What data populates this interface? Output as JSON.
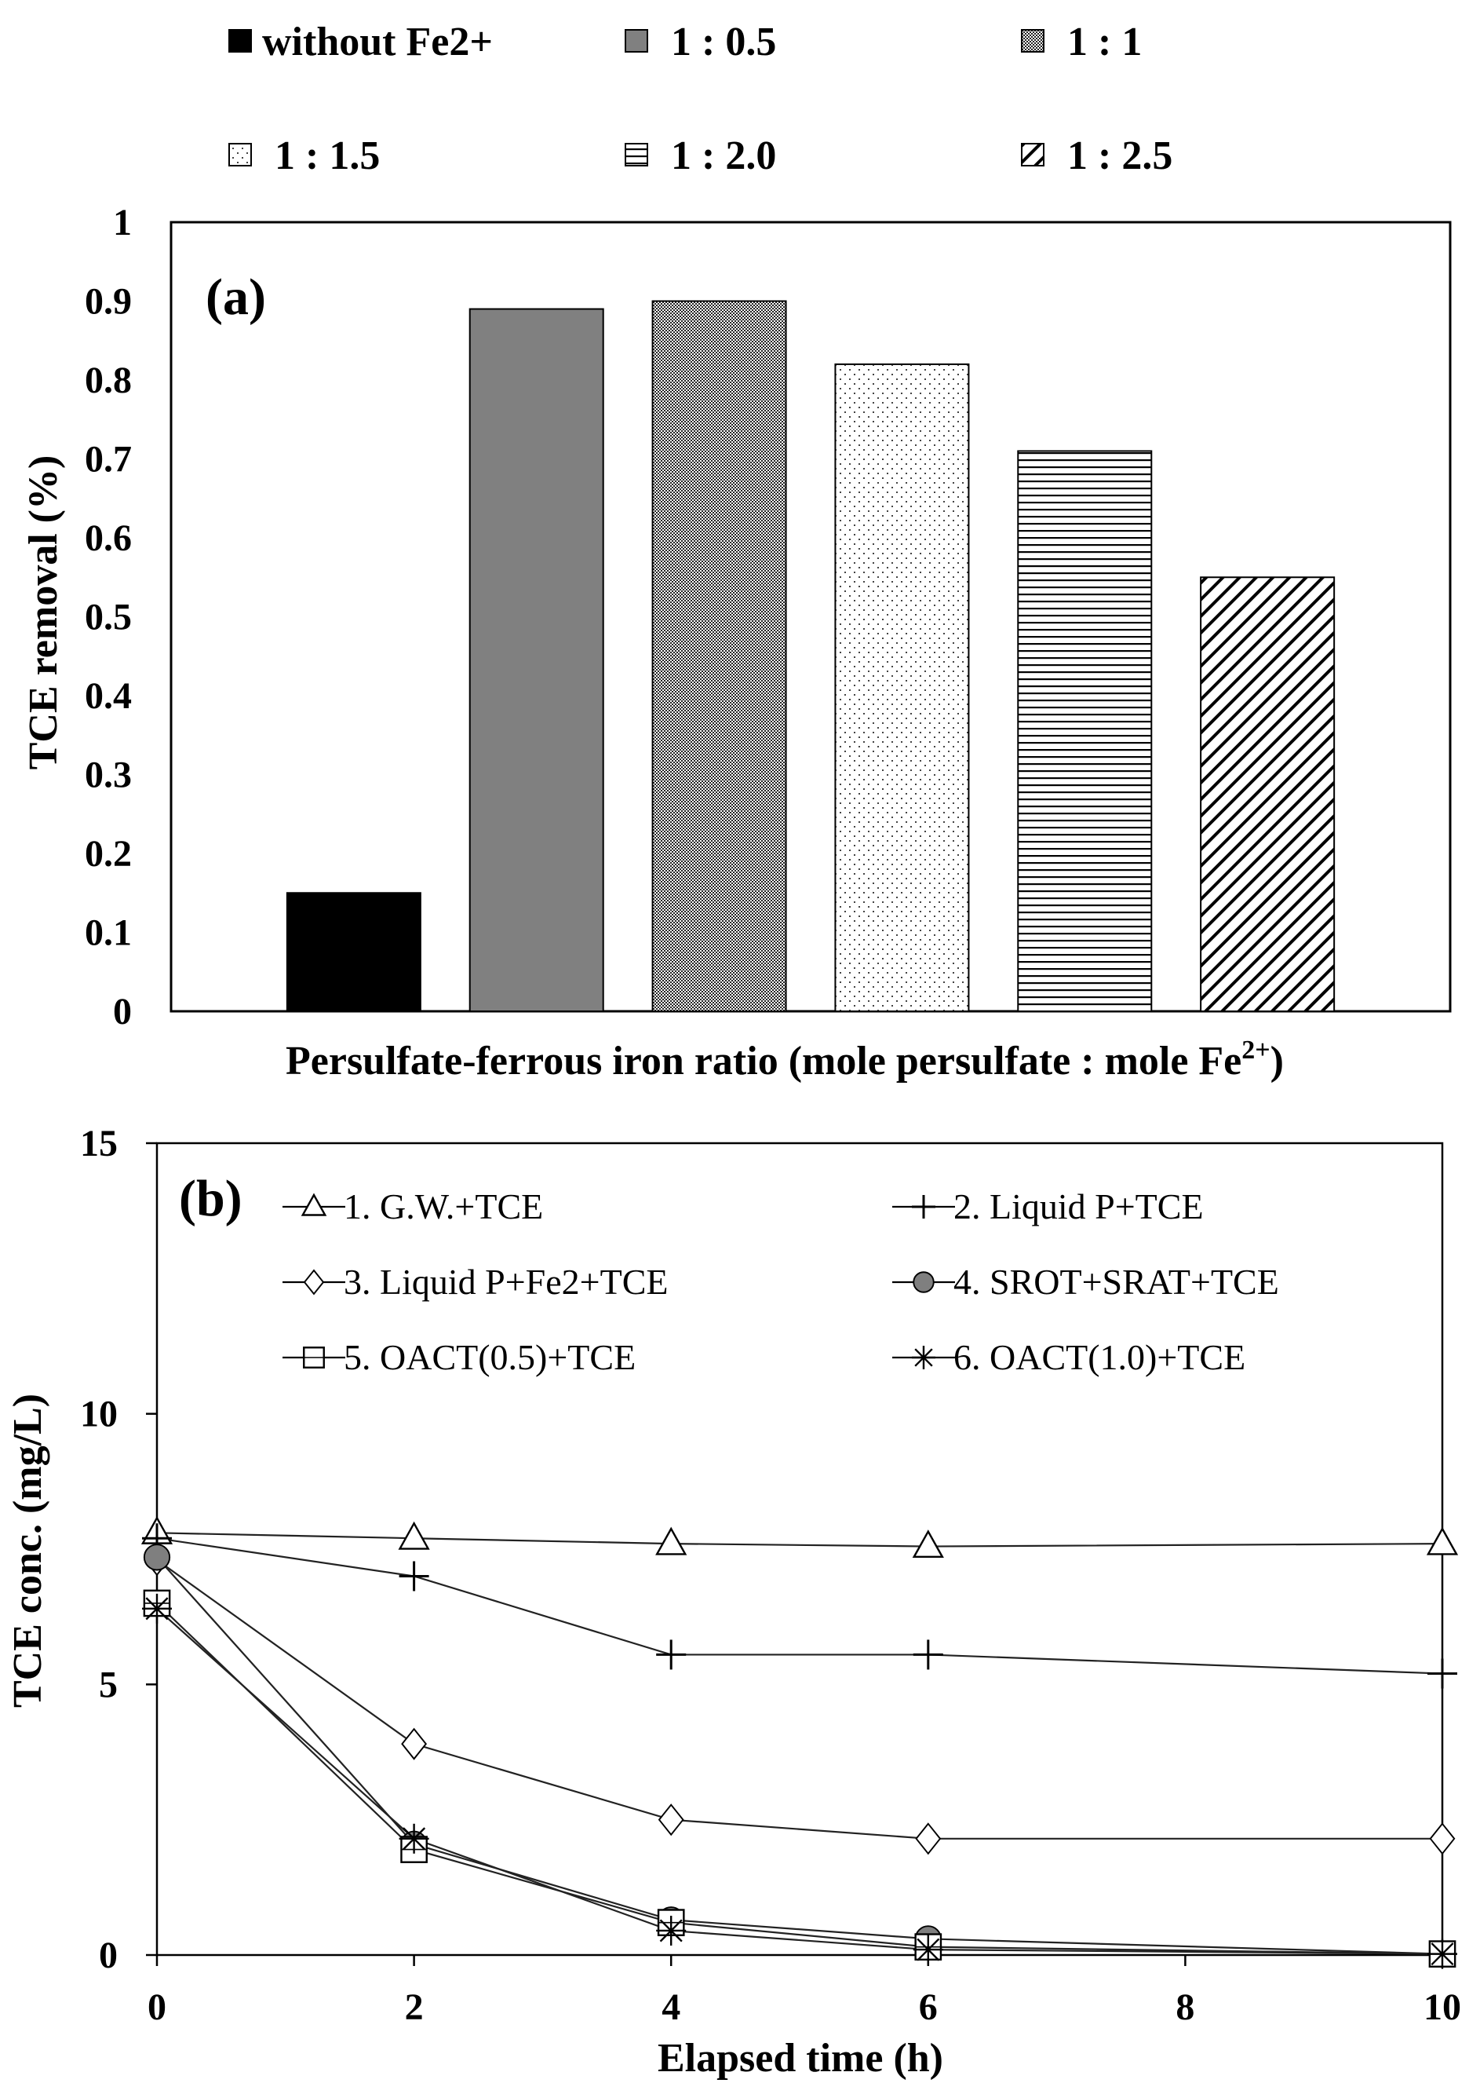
{
  "chart_data": [
    {
      "type": "bar",
      "panel_label": "(a)",
      "xlabel": "Persulfate-ferrous iron ratio (mole persulfate : mole Fe",
      "xlabel_sup": "2+",
      "xlabel_end": ")",
      "ylabel": "TCE removal (%)",
      "ylim": [
        0,
        1
      ],
      "yticks": [
        "0",
        "0.1",
        "0.2",
        "0.3",
        "0.4",
        "0.5",
        "0.6",
        "0.7",
        "0.8",
        "0.9",
        "1"
      ],
      "categories": [
        "without Fe2+",
        "1 : 0.5",
        "1 : 1",
        "1 : 1.5",
        "1 : 2.0",
        "1 : 2.5"
      ],
      "values": [
        0.15,
        0.89,
        0.9,
        0.82,
        0.71,
        0.55
      ],
      "fills": [
        "solid-black",
        "solid-gray",
        "dense-dots",
        "sparse-dots",
        "horizontal-lines",
        "diagonal-lines"
      ],
      "legend_placement": "top, above plot, two rows",
      "grid": false
    },
    {
      "type": "line",
      "panel_label": "(b)",
      "xlabel": "Elapsed time (h)",
      "ylabel": "TCE conc. (mg/L)",
      "xlim": [
        0,
        10
      ],
      "ylim": [
        0,
        15
      ],
      "xticks": [
        "0",
        "2",
        "4",
        "6",
        "8",
        "10"
      ],
      "yticks": [
        "0",
        "5",
        "10",
        "15"
      ],
      "x": [
        0,
        2,
        4,
        6,
        10
      ],
      "series": [
        {
          "name": "1. G.W.+TCE",
          "marker": "triangle",
          "values": [
            7.8,
            7.7,
            7.6,
            7.55,
            7.6
          ]
        },
        {
          "name": "2. Liquid P+TCE",
          "marker": "plus",
          "values": [
            7.7,
            7.0,
            5.55,
            5.55,
            5.2
          ]
        },
        {
          "name": "3. Liquid P+Fe2+TCE",
          "marker": "diamond",
          "values": [
            7.3,
            3.9,
            2.5,
            2.15,
            2.15
          ]
        },
        {
          "name": "4. SROT+SRAT+TCE",
          "marker": "circle",
          "values": [
            7.35,
            2.05,
            0.65,
            0.3,
            0.02
          ]
        },
        {
          "name": "5. OACT(0.5)+TCE",
          "marker": "square",
          "values": [
            6.5,
            1.95,
            0.6,
            0.15,
            0.02
          ]
        },
        {
          "name": "6. OACT(1.0)+TCE",
          "marker": "asterisk",
          "values": [
            6.4,
            2.15,
            0.45,
            0.1,
            0.02
          ]
        }
      ],
      "legend_placement": "inside, top, two columns",
      "grid": false
    }
  ]
}
